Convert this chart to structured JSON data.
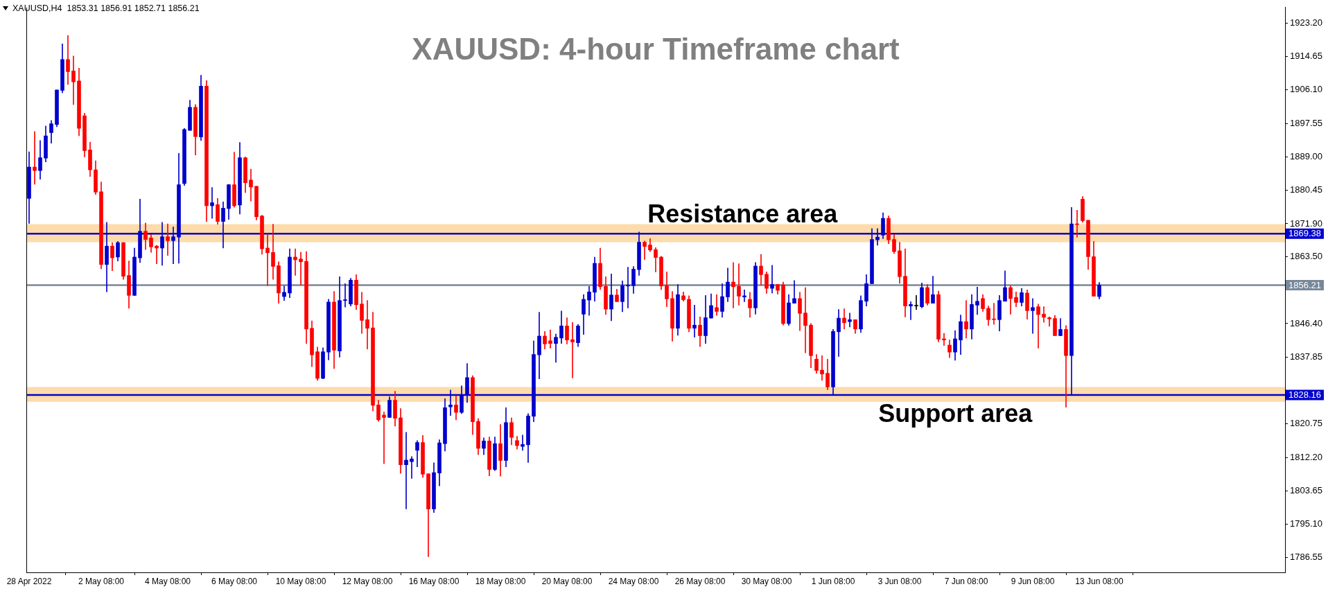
{
  "chart_data": {
    "type": "candlestick",
    "title": "XAUUSD: 4-hour Timeframe chart",
    "annotations": [
      "XAUUSD,H4  1853.31 1856.91 1852.71 1856.21"
    ],
    "categories": [
      "28 Apr 2022",
      null,
      null,
      null,
      null,
      null,
      null,
      null,
      null,
      null,
      null,
      null,
      null,
      "2 May 08:00",
      null,
      null,
      null,
      null,
      null,
      null,
      null,
      null,
      null,
      null,
      null,
      "4 May 08:00",
      null,
      null,
      null,
      null,
      null,
      null,
      null,
      null,
      null,
      null,
      null,
      "6 May 08:00",
      null,
      null,
      null,
      null,
      null,
      null,
      null,
      null,
      null,
      null,
      null,
      "10 May 08:00",
      null,
      null,
      null,
      null,
      null,
      null,
      null,
      null,
      null,
      null,
      null,
      "12 May 08:00",
      null,
      null,
      null,
      null,
      null,
      null,
      null,
      null,
      null,
      null,
      null,
      "16 May 08:00",
      null,
      null,
      null,
      null,
      null,
      null,
      null,
      null,
      null,
      null,
      null,
      "18 May 08:00",
      null,
      null,
      null,
      null,
      null,
      null,
      null,
      null,
      null,
      null,
      null,
      "20 May 08:00",
      null,
      null,
      null,
      null,
      null,
      null,
      null,
      null,
      null,
      null,
      null,
      "24 May 08:00",
      null,
      null,
      null,
      null,
      null,
      null,
      null,
      null,
      null,
      null,
      null,
      "26 May 08:00",
      null,
      null,
      null,
      null,
      null,
      null,
      null,
      null,
      null,
      null,
      null,
      "30 May 08:00",
      null,
      null,
      null,
      null,
      null,
      null,
      null,
      null,
      null,
      null,
      null,
      "1 Jun 08:00",
      null,
      null,
      null,
      null,
      null,
      null,
      null,
      null,
      null,
      null,
      null,
      "3 Jun 08:00",
      null,
      null,
      null,
      null,
      null,
      null,
      null,
      null,
      null,
      null,
      null,
      "7 Jun 08:00",
      null,
      null,
      null,
      null,
      null,
      null,
      null,
      null,
      null,
      null,
      null,
      "9 Jun 08:00",
      null,
      null,
      null,
      null,
      null,
      null,
      null,
      null,
      null,
      null,
      null,
      "13 Jun 08:00",
      null,
      null,
      null,
      null,
      null,
      null,
      null,
      null,
      null,
      null,
      null,
      null,
      null,
      null,
      null,
      null,
      null,
      null,
      null,
      null,
      null,
      null,
      null,
      null,
      null,
      null,
      null,
      null,
      null,
      null,
      null,
      null,
      null
    ],
    "ohlc": [
      [
        1878.4,
        1890.3,
        1872.0,
        1886.4
      ],
      [
        1886.4,
        1895.5,
        1882.0,
        1885.5
      ],
      [
        1885.5,
        1893.2,
        1883.3,
        1888.8
      ],
      [
        1888.7,
        1896.9,
        1887.7,
        1894.4
      ],
      [
        1895.2,
        1898.3,
        1892.5,
        1897.5
      ],
      [
        1897.3,
        1906.1,
        1896.7,
        1906.1
      ],
      [
        1906.0,
        1917.9,
        1905.4,
        1913.9
      ],
      [
        1913.9,
        1920.0,
        1907.5,
        1910.8
      ],
      [
        1911.0,
        1914.8,
        1902.4,
        1908.2
      ],
      [
        1908.4,
        1911.7,
        1894.4,
        1896.3
      ],
      [
        1899.5,
        1900.2,
        1889.0,
        1890.6
      ],
      [
        1890.8,
        1892.8,
        1884.0,
        1885.7
      ],
      [
        1885.7,
        1888.0,
        1879.4,
        1880.0
      ],
      [
        1880.1,
        1882.6,
        1860.4,
        1861.5
      ],
      [
        1861.5,
        1872.3,
        1854.5,
        1866.2
      ],
      [
        1866.2,
        1867.1,
        1859.9,
        1863.2
      ],
      [
        1863.4,
        1867.4,
        1862.4,
        1867.1
      ],
      [
        1867.1,
        1867.1,
        1857.7,
        1858.5
      ],
      [
        1858.7,
        1862.4,
        1850.3,
        1853.6
      ],
      [
        1853.6,
        1865.7,
        1853.6,
        1863.4
      ],
      [
        1863.2,
        1878.2,
        1862.0,
        1870.0
      ],
      [
        1870.0,
        1872.1,
        1865.3,
        1867.9
      ],
      [
        1868.3,
        1869.2,
        1864.6,
        1866.0
      ],
      [
        1866.2,
        1866.4,
        1861.7,
        1865.7
      ],
      [
        1865.7,
        1872.3,
        1861.3,
        1868.6
      ],
      [
        1868.6,
        1871.9,
        1863.8,
        1867.6
      ],
      [
        1867.6,
        1871.1,
        1861.7,
        1868.6
      ],
      [
        1868.5,
        1889.9,
        1861.8,
        1881.9
      ],
      [
        1882.2,
        1896.3,
        1881.7,
        1896.0
      ],
      [
        1895.8,
        1903.5,
        1895.8,
        1901.7
      ],
      [
        1901.7,
        1902.4,
        1889.5,
        1894.2
      ],
      [
        1894.1,
        1909.9,
        1893.2,
        1907.1
      ],
      [
        1907.1,
        1908.5,
        1872.5,
        1876.5
      ],
      [
        1876.5,
        1881.2,
        1873.3,
        1877.3
      ],
      [
        1876.8,
        1878.4,
        1871.8,
        1872.5
      ],
      [
        1872.5,
        1877.5,
        1865.7,
        1875.9
      ],
      [
        1875.8,
        1882.0,
        1873.0,
        1881.9
      ],
      [
        1881.9,
        1890.2,
        1876.1,
        1876.5
      ],
      [
        1876.7,
        1892.7,
        1874.4,
        1888.8
      ],
      [
        1888.8,
        1889.0,
        1879.9,
        1882.4
      ],
      [
        1883.1,
        1885.9,
        1877.7,
        1881.3
      ],
      [
        1881.5,
        1881.5,
        1872.9,
        1873.7
      ],
      [
        1873.9,
        1874.1,
        1864.1,
        1865.5
      ],
      [
        1865.7,
        1869.4,
        1856.1,
        1864.5
      ],
      [
        1864.6,
        1871.8,
        1857.7,
        1861.0
      ],
      [
        1861.2,
        1862.2,
        1851.6,
        1854.2
      ],
      [
        1853.3,
        1856.0,
        1852.3,
        1854.4
      ],
      [
        1854.2,
        1865.5,
        1853.0,
        1863.4
      ],
      [
        1863.4,
        1865.5,
        1858.7,
        1862.7
      ],
      [
        1862.9,
        1864.6,
        1856.3,
        1862.2
      ],
      [
        1862.3,
        1864.8,
        1841.3,
        1845.0
      ],
      [
        1845.2,
        1847.1,
        1835.4,
        1838.4
      ],
      [
        1839.2,
        1840.4,
        1831.9,
        1832.4
      ],
      [
        1832.4,
        1840.2,
        1832.3,
        1839.2
      ],
      [
        1839.1,
        1852.6,
        1837.1,
        1851.9
      ],
      [
        1851.9,
        1854.6,
        1834.9,
        1839.6
      ],
      [
        1839.4,
        1858.4,
        1837.8,
        1852.3
      ],
      [
        1852.3,
        1856.6,
        1850.6,
        1852.5
      ],
      [
        1851.4,
        1858.0,
        1850.9,
        1857.5
      ],
      [
        1857.5,
        1858.9,
        1850.0,
        1851.2
      ],
      [
        1851.4,
        1854.4,
        1843.9,
        1847.2
      ],
      [
        1847.4,
        1852.3,
        1839.9,
        1845.2
      ],
      [
        1845.3,
        1849.3,
        1824.1,
        1825.5
      ],
      [
        1825.6,
        1826.8,
        1821.4,
        1821.8
      ],
      [
        1823.0,
        1823.8,
        1810.6,
        1822.4
      ],
      [
        1822.4,
        1827.7,
        1822.4,
        1826.8
      ],
      [
        1826.8,
        1829.1,
        1820.2,
        1822.2
      ],
      [
        1822.3,
        1824.7,
        1808.1,
        1810.3
      ],
      [
        1810.3,
        1818.6,
        1799.0,
        1811.5
      ],
      [
        1811.1,
        1812.4,
        1806.8,
        1811.8
      ],
      [
        1814.0,
        1816.5,
        1809.8,
        1816.0
      ],
      [
        1816.0,
        1817.8,
        1807.1,
        1807.9
      ],
      [
        1808.0,
        1808.0,
        1786.8,
        1799.0
      ],
      [
        1799.0,
        1810.8,
        1798.1,
        1808.3
      ],
      [
        1808.2,
        1816.7,
        1804.9,
        1815.9
      ],
      [
        1815.7,
        1827.2,
        1813.8,
        1824.9
      ],
      [
        1825.1,
        1829.4,
        1822.9,
        1825.6
      ],
      [
        1825.6,
        1827.9,
        1821.8,
        1823.7
      ],
      [
        1823.7,
        1830.5,
        1823.4,
        1828.2
      ],
      [
        1828.2,
        1836.2,
        1826.2,
        1832.6
      ],
      [
        1832.6,
        1833.1,
        1818.0,
        1821.3
      ],
      [
        1821.4,
        1822.1,
        1812.9,
        1814.5
      ],
      [
        1814.5,
        1817.2,
        1812.9,
        1816.4
      ],
      [
        1816.4,
        1817.4,
        1807.5,
        1809.1
      ],
      [
        1809.1,
        1817.4,
        1808.8,
        1815.7
      ],
      [
        1815.7,
        1820.6,
        1807.4,
        1811.4
      ],
      [
        1811.4,
        1824.9,
        1809.8,
        1821.1
      ],
      [
        1821.1,
        1822.3,
        1815.4,
        1817.3
      ],
      [
        1816.5,
        1817.6,
        1814.3,
        1815.2
      ],
      [
        1815.0,
        1817.9,
        1814.0,
        1815.5
      ],
      [
        1815.4,
        1823.4,
        1810.9,
        1822.8
      ],
      [
        1822.7,
        1842.0,
        1821.3,
        1838.5
      ],
      [
        1838.4,
        1849.3,
        1832.3,
        1843.2
      ],
      [
        1843.2,
        1844.4,
        1839.9,
        1841.2
      ],
      [
        1842.0,
        1844.8,
        1840.1,
        1841.3
      ],
      [
        1841.3,
        1843.7,
        1836.5,
        1842.9
      ],
      [
        1842.7,
        1849.6,
        1841.3,
        1845.8
      ],
      [
        1845.8,
        1847.9,
        1841.2,
        1842.2
      ],
      [
        1842.3,
        1846.7,
        1832.5,
        1841.7
      ],
      [
        1841.5,
        1846.2,
        1840.5,
        1845.8
      ],
      [
        1848.8,
        1853.8,
        1843.6,
        1852.6
      ],
      [
        1852.4,
        1855.9,
        1848.5,
        1854.5
      ],
      [
        1854.4,
        1863.4,
        1852.1,
        1861.8
      ],
      [
        1861.8,
        1865.7,
        1855.1,
        1855.8
      ],
      [
        1855.9,
        1858.4,
        1848.7,
        1850.1
      ],
      [
        1850.1,
        1859.1,
        1847.1,
        1853.7
      ],
      [
        1853.7,
        1855.2,
        1852.0,
        1852.0
      ],
      [
        1852.0,
        1857.3,
        1849.4,
        1856.1
      ],
      [
        1856.0,
        1860.8,
        1850.4,
        1856.2
      ],
      [
        1856.1,
        1861.0,
        1854.1,
        1860.3
      ],
      [
        1860.2,
        1869.8,
        1858.7,
        1867.2
      ],
      [
        1867.2,
        1867.5,
        1862.8,
        1866.1
      ],
      [
        1866.5,
        1868.1,
        1864.8,
        1865.2
      ],
      [
        1865.3,
        1865.8,
        1859.6,
        1863.3
      ],
      [
        1863.4,
        1863.6,
        1855.1,
        1856.0
      ],
      [
        1856.1,
        1859.6,
        1850.7,
        1852.7
      ],
      [
        1852.8,
        1854.6,
        1841.9,
        1845.2
      ],
      [
        1845.2,
        1856.4,
        1843.4,
        1853.8
      ],
      [
        1853.5,
        1854.5,
        1852.1,
        1852.5
      ],
      [
        1852.6,
        1853.5,
        1844.3,
        1845.2
      ],
      [
        1845.2,
        1851.1,
        1842.9,
        1846.0
      ],
      [
        1846.0,
        1848.1,
        1840.5,
        1843.3
      ],
      [
        1843.3,
        1853.6,
        1841.3,
        1847.9
      ],
      [
        1847.8,
        1854.0,
        1847.8,
        1851.0
      ],
      [
        1850.5,
        1853.8,
        1848.5,
        1849.5
      ],
      [
        1849.5,
        1856.6,
        1848.0,
        1853.3
      ],
      [
        1853.2,
        1860.6,
        1852.0,
        1857.0
      ],
      [
        1857.0,
        1862.0,
        1850.4,
        1855.8
      ],
      [
        1855.9,
        1861.7,
        1851.1,
        1853.4
      ],
      [
        1853.2,
        1855.0,
        1852.0,
        1853.5
      ],
      [
        1852.6,
        1854.4,
        1848.0,
        1850.4
      ],
      [
        1850.4,
        1862.0,
        1848.8,
        1861.1
      ],
      [
        1861.1,
        1864.1,
        1856.3,
        1858.9
      ],
      [
        1859.0,
        1859.6,
        1854.1,
        1855.4
      ],
      [
        1855.4,
        1861.3,
        1854.2,
        1856.4
      ],
      [
        1856.4,
        1856.4,
        1853.9,
        1854.9
      ],
      [
        1856.3,
        1857.0,
        1846.0,
        1846.4
      ],
      [
        1846.4,
        1853.8,
        1845.9,
        1851.7
      ],
      [
        1851.6,
        1857.4,
        1851.6,
        1852.8
      ],
      [
        1852.8,
        1854.4,
        1844.6,
        1849.0
      ],
      [
        1849.1,
        1855.6,
        1838.9,
        1845.9
      ],
      [
        1846.0,
        1846.4,
        1835.1,
        1838.2
      ],
      [
        1837.3,
        1838.5,
        1833.7,
        1834.4
      ],
      [
        1834.5,
        1838.2,
        1831.9,
        1833.5
      ],
      [
        1833.7,
        1837.3,
        1829.5,
        1830.2
      ],
      [
        1830.2,
        1844.9,
        1828.4,
        1844.4
      ],
      [
        1844.3,
        1850.0,
        1838.0,
        1847.8
      ],
      [
        1847.8,
        1850.2,
        1845.0,
        1846.6
      ],
      [
        1846.9,
        1849.1,
        1845.5,
        1847.4
      ],
      [
        1847.4,
        1847.4,
        1843.9,
        1845.0
      ],
      [
        1845.0,
        1853.5,
        1844.1,
        1852.3
      ],
      [
        1852.1,
        1858.9,
        1850.9,
        1856.6
      ],
      [
        1856.6,
        1870.7,
        1856.6,
        1867.9
      ],
      [
        1867.8,
        1870.7,
        1866.4,
        1868.5
      ],
      [
        1869.0,
        1874.7,
        1868.1,
        1873.3
      ],
      [
        1873.3,
        1873.9,
        1866.8,
        1867.8
      ],
      [
        1867.9,
        1869.2,
        1864.3,
        1864.8
      ],
      [
        1865.0,
        1867.2,
        1856.7,
        1858.4
      ],
      [
        1858.5,
        1865.5,
        1848.1,
        1850.9
      ],
      [
        1850.9,
        1852.0,
        1847.4,
        1851.3
      ],
      [
        1850.9,
        1853.6,
        1850.0,
        1850.9
      ],
      [
        1850.7,
        1856.8,
        1850.4,
        1855.6
      ],
      [
        1855.6,
        1856.4,
        1851.1,
        1851.6
      ],
      [
        1851.6,
        1858.5,
        1851.6,
        1853.8
      ],
      [
        1853.8,
        1854.7,
        1841.7,
        1842.4
      ],
      [
        1842.5,
        1843.9,
        1840.8,
        1842.2
      ],
      [
        1840.9,
        1842.2,
        1837.7,
        1839.1
      ],
      [
        1839.1,
        1844.6,
        1837.0,
        1842.5
      ],
      [
        1842.2,
        1848.6,
        1838.5,
        1846.9
      ],
      [
        1846.9,
        1852.3,
        1842.7,
        1845.0
      ],
      [
        1845.0,
        1853.8,
        1842.4,
        1851.3
      ],
      [
        1851.1,
        1855.7,
        1848.7,
        1852.1
      ],
      [
        1852.8,
        1853.8,
        1849.5,
        1850.2
      ],
      [
        1850.3,
        1850.9,
        1845.9,
        1847.4
      ],
      [
        1847.6,
        1851.6,
        1846.2,
        1847.4
      ],
      [
        1847.4,
        1853.6,
        1844.5,
        1852.3
      ],
      [
        1852.1,
        1859.9,
        1852.1,
        1855.6
      ],
      [
        1855.6,
        1856.1,
        1848.8,
        1852.8
      ],
      [
        1853.1,
        1854.5,
        1850.7,
        1851.8
      ],
      [
        1851.8,
        1855.4,
        1850.9,
        1854.3
      ],
      [
        1854.2,
        1855.0,
        1847.5,
        1849.7
      ],
      [
        1849.7,
        1852.8,
        1843.9,
        1850.5
      ],
      [
        1850.7,
        1851.4,
        1840.1,
        1848.7
      ],
      [
        1848.8,
        1850.7,
        1846.7,
        1848.0
      ],
      [
        1847.9,
        1848.1,
        1845.7,
        1847.6
      ],
      [
        1847.7,
        1848.5,
        1843.3,
        1843.3
      ],
      [
        1843.3,
        1847.7,
        1843.3,
        1844.9
      ],
      [
        1844.9,
        1845.9,
        1825.0,
        1838.2
      ],
      [
        1838.2,
        1876.1,
        1828.3,
        1871.9
      ],
      [
        1871.9,
        1875.4,
        1868.5,
        1871.7
      ],
      [
        1878.2,
        1878.9,
        1872.3,
        1872.7
      ],
      [
        1872.8,
        1872.8,
        1860.2,
        1863.5
      ],
      [
        1863.5,
        1867.4,
        1853.4,
        1853.4
      ],
      [
        1853.31,
        1856.91,
        1852.71,
        1856.21
      ],
      null,
      null,
      null,
      null,
      null,
      null,
      null,
      null,
      null,
      null,
      null,
      null,
      null,
      null,
      null,
      null,
      null,
      null,
      null,
      null,
      null,
      null,
      null,
      null,
      null,
      null,
      null,
      null,
      null,
      null,
      null,
      null,
      null
    ],
    "colors": [
      "#0000cd",
      "#ff0000",
      "#0000cd",
      "#0000cd",
      "#0000cd",
      "#0000cd",
      "#0000cd",
      "#ff0000",
      "#ff0000",
      "#ff0000",
      "#ff0000",
      "#ff0000",
      "#ff0000",
      "#ff0000",
      "#0000cd",
      "#ff0000",
      "#0000cd",
      "#ff0000",
      "#ff0000",
      "#0000cd",
      "#0000cd",
      "#ff0000",
      "#ff0000",
      "#ff0000",
      "#0000cd",
      "#ff0000",
      "#0000cd",
      "#0000cd",
      "#0000cd",
      "#0000cd",
      "#ff0000",
      "#0000cd",
      "#ff0000",
      "#0000cd",
      "#ff0000",
      "#0000cd",
      "#0000cd",
      "#ff0000",
      "#0000cd",
      "#ff0000",
      "#ff0000",
      "#ff0000",
      "#ff0000",
      "#ff0000",
      "#ff0000",
      "#ff0000",
      "#0000cd",
      "#0000cd",
      "#ff0000",
      "#ff0000",
      "#ff0000",
      "#ff0000",
      "#ff0000",
      "#0000cd",
      "#0000cd",
      "#ff0000",
      "#0000cd",
      "#0000cd",
      "#0000cd",
      "#ff0000",
      "#ff0000",
      "#ff0000",
      "#ff0000",
      "#ff0000",
      "#ff0000",
      "#0000cd",
      "#ff0000",
      "#ff0000",
      "#0000cd",
      "#0000cd",
      "#0000cd",
      "#ff0000",
      "#ff0000",
      "#0000cd",
      "#0000cd",
      "#0000cd",
      "#0000cd",
      "#ff0000",
      "#0000cd",
      "#0000cd",
      "#ff0000",
      "#ff0000",
      "#0000cd",
      "#ff0000",
      "#0000cd",
      "#ff0000",
      "#0000cd",
      "#ff0000",
      "#ff0000",
      "#0000cd",
      "#0000cd",
      "#0000cd",
      "#0000cd",
      "#ff0000",
      "#ff0000",
      "#0000cd",
      "#0000cd",
      "#ff0000",
      "#ff0000",
      "#0000cd",
      "#0000cd",
      "#0000cd",
      "#0000cd",
      "#ff0000",
      "#ff0000",
      "#0000cd",
      "#ff0000",
      "#0000cd",
      "#0000cd",
      "#0000cd",
      "#0000cd",
      "#ff0000",
      "#ff0000",
      "#ff0000",
      "#ff0000",
      "#ff0000",
      "#ff0000",
      "#0000cd",
      "#ff0000",
      "#ff0000",
      "#0000cd",
      "#ff0000",
      "#0000cd",
      "#0000cd",
      "#ff0000",
      "#0000cd",
      "#0000cd",
      "#ff0000",
      "#ff0000",
      "#0000cd",
      "#ff0000",
      "#0000cd",
      "#ff0000",
      "#ff0000",
      "#0000cd",
      "#ff0000",
      "#ff0000",
      "#0000cd",
      "#0000cd",
      "#ff0000",
      "#ff0000",
      "#ff0000",
      "#ff0000",
      "#ff0000",
      "#ff0000",
      "#0000cd",
      "#0000cd",
      "#ff0000",
      "#0000cd",
      "#ff0000",
      "#0000cd",
      "#0000cd",
      "#0000cd",
      "#0000cd",
      "#0000cd",
      "#ff0000",
      "#ff0000",
      "#ff0000",
      "#ff0000",
      "#0000cd",
      "#000000",
      "#0000cd",
      "#ff0000",
      "#0000cd",
      "#ff0000",
      "#ff0000",
      "#ff0000",
      "#0000cd",
      "#0000cd",
      "#ff0000",
      "#0000cd",
      "#0000cd",
      "#ff0000",
      "#ff0000",
      "#ff0000",
      "#0000cd",
      "#0000cd",
      "#ff0000",
      "#ff0000",
      "#0000cd",
      "#ff0000",
      "#0000cd",
      "#ff0000",
      "#ff0000",
      "#ff0000",
      "#ff0000",
      "#0000cd",
      "#ff0000",
      "#0000cd",
      "#ff0000",
      "#ff0000",
      "#ff0000",
      "#ff0000",
      "#0000cd",
      null,
      null,
      null,
      null,
      null,
      null,
      null,
      null,
      null,
      null,
      null,
      null,
      null,
      null,
      null,
      null,
      null,
      null,
      null,
      null,
      null,
      null,
      null,
      null,
      null,
      null,
      null,
      null,
      null,
      null,
      null,
      null,
      null
    ],
    "ylim": [
      1782.8,
      1927.2
    ],
    "yticks": [
      {
        "value": 1923.2,
        "label": "1923.20"
      },
      1914.65,
      {
        "value": 1906.1,
        "label": "1906.10"
      },
      1897.55,
      {
        "value": 1889,
        "label": "1889.00"
      },
      1880.45,
      {
        "value": 1871.9,
        "label": "1871.90"
      },
      {
        "value": 1863.5,
        "label": "1863.50"
      },
      {
        "value": 1854.95,
        "label": null
      },
      {
        "value": 1846.4,
        "label": "1846.40"
      },
      1837.85,
      {
        "value": 1829.3,
        "label": null
      },
      1820.75,
      {
        "value": 1812.2,
        "label": "1812.20"
      },
      1803.65,
      {
        "value": 1795.1,
        "label": "1795.10"
      },
      1786.55
    ],
    "ref_lines": [
      {
        "axis": "y",
        "value": 1869.38,
        "label": "1869.38",
        "color": "#0000cd"
      },
      {
        "axis": "y",
        "value": 1856.21,
        "label": "1856.21",
        "color": "#778899"
      },
      {
        "axis": "y",
        "value": 1828.16,
        "label": "1828.16",
        "color": "#0000cd"
      }
    ],
    "bands": [
      {
        "axis": "y",
        "from": 1867.2,
        "to": 1871.8,
        "label": "Resistance area",
        "color": "#fddbab"
      },
      {
        "axis": "y",
        "from": 1826.4,
        "to": 1830.2,
        "label": "Support area",
        "color": "#fddbab"
      }
    ]
  }
}
